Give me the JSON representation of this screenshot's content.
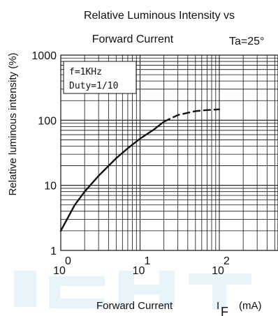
{
  "chart_data": {
    "type": "line",
    "title_line1": "Relative Luminous Intensity vs",
    "title_line2": "Forward Current",
    "condition": "Ta=25°",
    "ylabel": "Relative luminous intensity  (%)",
    "xlabel_text": "Forward Current",
    "xlabel_symbol": "I",
    "xlabel_subscript": "F",
    "xlabel_unit": "(mA)",
    "xscale": "log",
    "yscale": "log",
    "xlim": [
      1,
      150
    ],
    "ylim": [
      1,
      1000
    ],
    "grid": true,
    "legend_box": [
      "f=1KHz",
      "Duty=1/10"
    ],
    "y_ticks": [
      {
        "value": 1,
        "label": "1"
      },
      {
        "value": 10,
        "label": "10"
      },
      {
        "value": 100,
        "label": "100"
      },
      {
        "value": 1000,
        "label": "1000"
      }
    ],
    "x_ticks": [
      {
        "value": 1,
        "base": "10",
        "exp": "0"
      },
      {
        "value": 10,
        "base": "10",
        "exp": "1"
      },
      {
        "value": 100,
        "base": "10",
        "exp": "2"
      }
    ],
    "series": [
      {
        "style": "solid",
        "points": [
          [
            1,
            2
          ],
          [
            1.5,
            5
          ],
          [
            2,
            8
          ],
          [
            3,
            14
          ],
          [
            5,
            26
          ],
          [
            7,
            37
          ],
          [
            10,
            52
          ],
          [
            15,
            72
          ],
          [
            20,
            95
          ]
        ]
      },
      {
        "style": "dashed",
        "points": [
          [
            20,
            95
          ],
          [
            30,
            120
          ],
          [
            50,
            138
          ],
          [
            70,
            143
          ],
          [
            100,
            147
          ]
        ]
      }
    ],
    "colors": {
      "line": "#111111",
      "grid": "#111111",
      "watermark": "#d8ebf7"
    }
  }
}
